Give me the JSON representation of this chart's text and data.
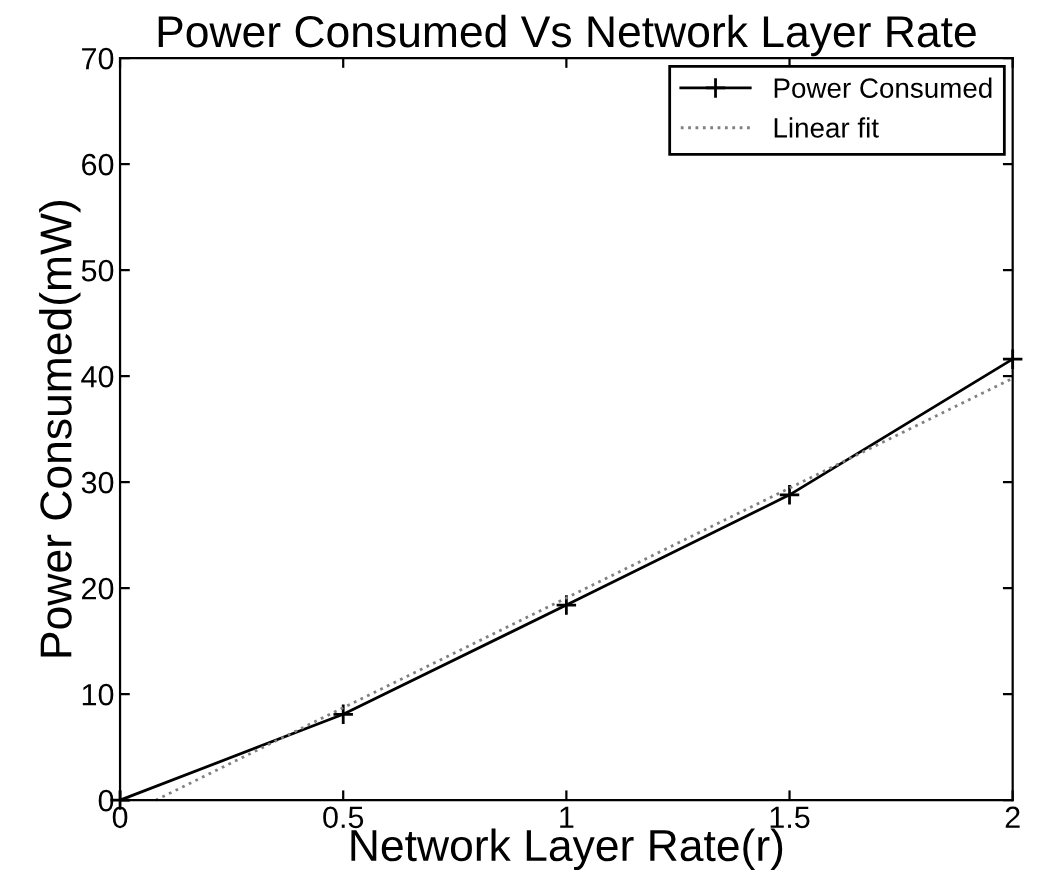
{
  "chart_data": {
    "type": "line",
    "title": "Power Consumed Vs Network Layer Rate",
    "xlabel": "Network Layer Rate(r)",
    "ylabel": "Power Consumed(mW)",
    "xlim": [
      0,
      2
    ],
    "xticks": [
      0,
      0.5,
      1,
      1.5,
      2
    ],
    "ylim": [
      0,
      70
    ],
    "yticks": [
      0,
      10,
      20,
      30,
      40,
      50,
      60,
      70
    ],
    "grid": false,
    "legend": "top right",
    "series": [
      {
        "name": "Power Consumed",
        "color": "#000000",
        "x": [
          0,
          0.5,
          1,
          1.5,
          2
        ],
        "values": [
          0,
          8.1,
          18.4,
          28.8,
          41.6
        ],
        "marker": "cross",
        "line_style": "solid"
      },
      {
        "name": "Linear fit",
        "color": "#808080",
        "x": [
          0.08,
          2
        ],
        "values": [
          0,
          39.8
        ],
        "marker": "none",
        "line_style": "dotted"
      }
    ]
  }
}
